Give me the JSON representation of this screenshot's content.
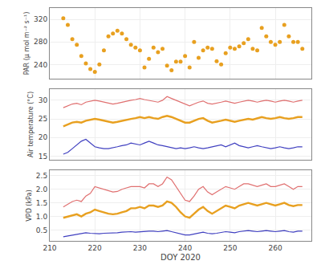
{
  "chart_data": [
    {
      "type": "scatter",
      "ylabel": "PAR (μ mol m⁻² s⁻¹)",
      "x": [
        213,
        214,
        215,
        216,
        217,
        218,
        219,
        220,
        221,
        222,
        223,
        224,
        225,
        226,
        227,
        228,
        229,
        230,
        231,
        232,
        233,
        234,
        235,
        236,
        237,
        238,
        239,
        240,
        241,
        242,
        243,
        244,
        245,
        246,
        247,
        248,
        249,
        250,
        251,
        252,
        253,
        254,
        255,
        256,
        257,
        258,
        259,
        260,
        261,
        262,
        263,
        264,
        265,
        266
      ],
      "values": [
        322,
        310,
        285,
        275,
        255,
        242,
        232,
        227,
        240,
        265,
        290,
        295,
        300,
        295,
        285,
        275,
        270,
        265,
        235,
        250,
        270,
        262,
        268,
        238,
        230,
        245,
        245,
        255,
        235,
        280,
        252,
        265,
        270,
        268,
        246,
        240,
        260,
        270,
        268,
        272,
        278,
        285,
        268,
        265,
        305,
        290,
        280,
        275,
        280,
        310,
        290,
        280,
        280,
        268
      ],
      "color": "#E8A020",
      "xlim": [
        210,
        268
      ],
      "xticks": [
        210,
        220,
        230,
        240,
        250,
        260
      ],
      "ylim": [
        215,
        340
      ],
      "yticks": [
        240,
        280,
        320
      ],
      "grid": true,
      "tick_labels": "y"
    },
    {
      "type": "line",
      "ylabel": "Air temperature (°C)",
      "x": [
        213,
        214,
        215,
        216,
        217,
        218,
        219,
        220,
        221,
        222,
        223,
        224,
        225,
        226,
        227,
        228,
        229,
        230,
        231,
        232,
        233,
        234,
        235,
        236,
        237,
        238,
        239,
        240,
        241,
        242,
        243,
        244,
        245,
        246,
        247,
        248,
        249,
        250,
        251,
        252,
        253,
        254,
        255,
        256,
        257,
        258,
        259,
        260,
        261,
        262,
        263,
        264,
        265,
        266
      ],
      "series": [
        {
          "color": "#E07070",
          "values": [
            28,
            28.5,
            29,
            29.2,
            28.8,
            29.5,
            29.8,
            30,
            29.8,
            29.5,
            29.2,
            29.0,
            29.2,
            29.5,
            29.8,
            30.0,
            30.2,
            30.5,
            30.2,
            30.0,
            29.8,
            29.5,
            30.0,
            31.0,
            30.5,
            30.0,
            29.5,
            29.0,
            28.5,
            29.0,
            29.5,
            29.8,
            29.2,
            29.0,
            29.2,
            29.5,
            29.8,
            29.5,
            29.2,
            29.5,
            29.8,
            30.0,
            29.8,
            29.5,
            29.8,
            30.0,
            29.8,
            29.5,
            29.8,
            30.0,
            29.8,
            29.5,
            29.8,
            30.0
          ]
        },
        {
          "color": "#E8A020",
          "values": [
            23,
            23.5,
            24,
            24.2,
            24.0,
            24.5,
            24.8,
            25,
            24.8,
            24.5,
            24.2,
            24.0,
            24.2,
            24.5,
            24.8,
            25.0,
            25.2,
            25.5,
            25.2,
            25.5,
            25.2,
            25.0,
            25.5,
            25.8,
            25.5,
            25.0,
            24.5,
            24.0,
            24.0,
            24.5,
            25.0,
            25.2,
            24.5,
            24.0,
            24.2,
            24.5,
            24.8,
            24.5,
            24.2,
            24.5,
            24.8,
            25.0,
            24.8,
            25.2,
            25.5,
            25.2,
            25.0,
            25.2,
            25.5,
            25.2,
            25.0,
            25.2,
            25.5,
            25.5
          ]
        },
        {
          "color": "#4040C0",
          "values": [
            15.5,
            16.0,
            17.0,
            18.0,
            19.0,
            19.5,
            18.5,
            17.5,
            17.2,
            17.0,
            17.0,
            17.2,
            17.5,
            17.8,
            18.0,
            18.5,
            18.2,
            18.0,
            18.5,
            19.0,
            18.5,
            18.0,
            17.8,
            17.5,
            17.2,
            17.0,
            17.2,
            17.0,
            17.2,
            17.5,
            17.2,
            17.0,
            17.2,
            17.5,
            17.8,
            18.0,
            17.5,
            18.0,
            18.5,
            17.8,
            17.5,
            17.2,
            17.5,
            17.8,
            17.5,
            17.2,
            17.0,
            17.2,
            17.5,
            17.2,
            17.0,
            17.2,
            17.5,
            17.5
          ]
        }
      ],
      "xlim": [
        210,
        268
      ],
      "xticks": [
        210,
        220,
        230,
        240,
        250,
        260
      ],
      "ylim": [
        14,
        33
      ],
      "yticks": [
        15,
        20,
        25,
        30
      ],
      "grid": true,
      "tick_labels": "y"
    },
    {
      "type": "line",
      "ylabel": "VPD (kPa)",
      "xlabel": "DOY 2020",
      "x": [
        213,
        214,
        215,
        216,
        217,
        218,
        219,
        220,
        221,
        222,
        223,
        224,
        225,
        226,
        227,
        228,
        229,
        230,
        231,
        232,
        233,
        234,
        235,
        236,
        237,
        238,
        239,
        240,
        241,
        242,
        243,
        244,
        245,
        246,
        247,
        248,
        249,
        250,
        251,
        252,
        253,
        254,
        255,
        256,
        257,
        258,
        259,
        260,
        261,
        262,
        263,
        264,
        265,
        266
      ],
      "series": [
        {
          "color": "#E07070",
          "values": [
            1.35,
            1.45,
            1.55,
            1.6,
            1.55,
            1.75,
            1.85,
            2.1,
            2.05,
            2.0,
            1.95,
            1.9,
            1.92,
            2.0,
            2.05,
            2.1,
            2.1,
            2.1,
            2.05,
            2.2,
            2.2,
            2.1,
            2.2,
            2.45,
            2.35,
            2.1,
            1.85,
            1.6,
            1.55,
            1.75,
            2.0,
            2.1,
            1.9,
            1.8,
            1.9,
            2.0,
            2.1,
            2.05,
            2.0,
            2.1,
            2.2,
            2.2,
            2.15,
            2.1,
            2.15,
            2.2,
            2.1,
            2.1,
            2.15,
            2.2,
            2.1,
            2.0,
            2.1,
            2.1
          ]
        },
        {
          "color": "#E8A020",
          "values": [
            0.95,
            1.0,
            1.05,
            1.08,
            1.0,
            1.1,
            1.15,
            1.25,
            1.2,
            1.15,
            1.1,
            1.08,
            1.1,
            1.15,
            1.2,
            1.3,
            1.3,
            1.35,
            1.3,
            1.4,
            1.4,
            1.35,
            1.4,
            1.55,
            1.5,
            1.35,
            1.15,
            1.0,
            0.95,
            1.1,
            1.25,
            1.35,
            1.2,
            1.1,
            1.2,
            1.3,
            1.4,
            1.35,
            1.3,
            1.4,
            1.45,
            1.5,
            1.45,
            1.4,
            1.45,
            1.5,
            1.45,
            1.4,
            1.45,
            1.5,
            1.42,
            1.38,
            1.42,
            1.42
          ]
        },
        {
          "color": "#4040C0",
          "values": [
            0.25,
            0.28,
            0.32,
            0.35,
            0.38,
            0.4,
            0.38,
            0.36,
            0.36,
            0.38,
            0.38,
            0.4,
            0.4,
            0.42,
            0.44,
            0.44,
            0.42,
            0.44,
            0.44,
            0.46,
            0.46,
            0.44,
            0.46,
            0.48,
            0.44,
            0.4,
            0.36,
            0.32,
            0.32,
            0.36,
            0.4,
            0.42,
            0.38,
            0.36,
            0.38,
            0.4,
            0.44,
            0.42,
            0.4,
            0.44,
            0.46,
            0.48,
            0.46,
            0.44,
            0.46,
            0.48,
            0.46,
            0.44,
            0.46,
            0.48,
            0.44,
            0.42,
            0.46,
            0.46
          ]
        }
      ],
      "xlim": [
        210,
        268
      ],
      "xticks": [
        210,
        220,
        230,
        240,
        250,
        260
      ],
      "ylim": [
        0.1,
        2.7
      ],
      "yticks": [
        0.5,
        {
          "value": 1,
          "label": "1.0"
        },
        1.5,
        {
          "value": 2,
          "label": "2.0"
        },
        2.5
      ],
      "grid": true,
      "tick_labels": true
    }
  ]
}
